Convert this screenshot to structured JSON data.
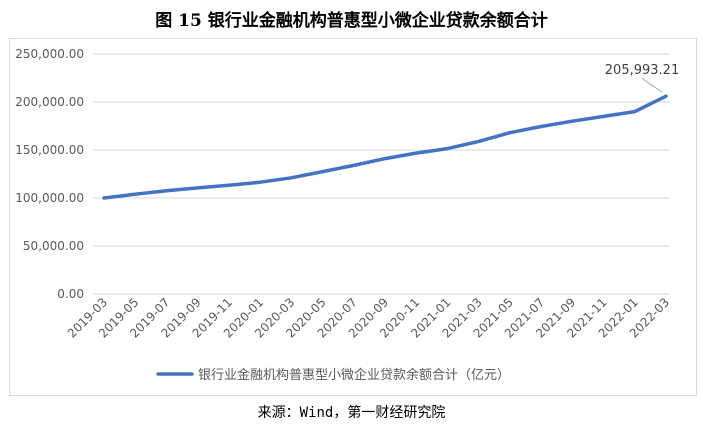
{
  "title": "图 15  银行业金融机构普惠型小微企业贷款余额合计",
  "source": "来源：Wind，第一财经研究院",
  "colors": {
    "line": "#4472c4",
    "grid": "#d9d9d9",
    "text": "#595959"
  },
  "chart_data": {
    "type": "line",
    "categories": [
      "2019-03",
      "2019-05",
      "2019-07",
      "2019-09",
      "2019-11",
      "2020-01",
      "2020-03",
      "2020-05",
      "2020-07",
      "2020-09",
      "2020-11",
      "2021-01",
      "2021-03",
      "2021-05",
      "2021-07",
      "2021-09",
      "2021-11",
      "2022-01",
      "2022-03"
    ],
    "series": [
      {
        "name": "银行业金融机构普惠型小微企业贷款余额合计（亿元）",
        "values": [
          100000,
          104000,
          107500,
          110500,
          113200,
          116500,
          121000,
          127500,
          134000,
          141000,
          146800,
          151500,
          159000,
          168000,
          174500,
          180000,
          185000,
          190000,
          205993.21
        ]
      }
    ],
    "yticks": [
      "0.00",
      "50,000.00",
      "100,000.00",
      "150,000.00",
      "200,000.00",
      "250,000.00"
    ],
    "ylim": [
      0,
      250000
    ],
    "annotation": {
      "index": 18,
      "text": "205,993.21"
    },
    "legend_position": "bottom",
    "grid": true
  }
}
